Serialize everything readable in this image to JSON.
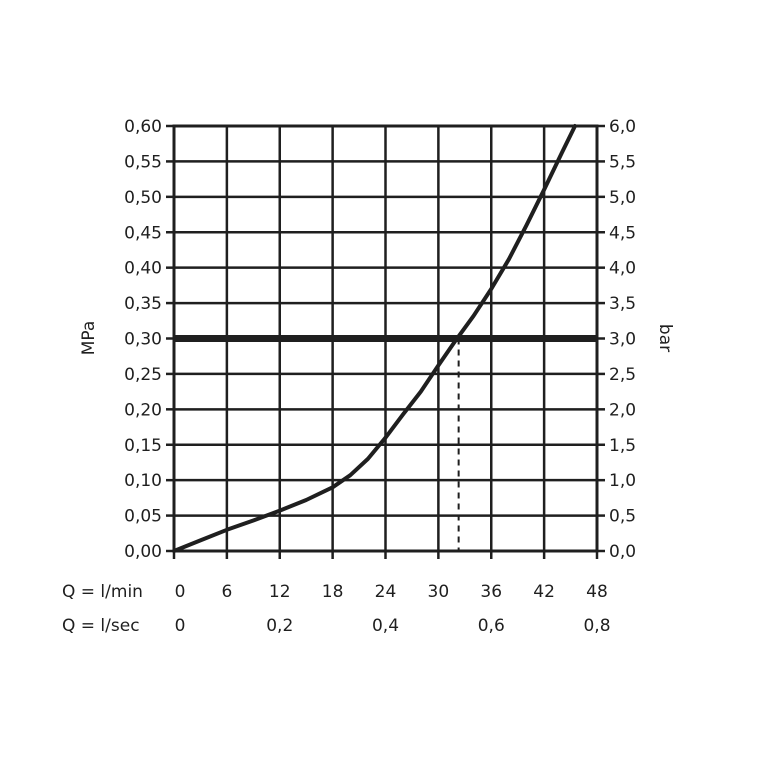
{
  "chart_data": {
    "type": "line",
    "title": "",
    "left_axis": {
      "label": "MPa",
      "ylim": [
        0,
        0.6
      ],
      "ticks": [
        "0,00",
        "0,05",
        "0,10",
        "0,15",
        "0,20",
        "0,25",
        "0,30",
        "0,35",
        "0,40",
        "0,45",
        "0,50",
        "0,55",
        "0,60"
      ]
    },
    "right_axis": {
      "label": "bar",
      "ylim": [
        0,
        6
      ],
      "ticks": [
        "0,0",
        "0,5",
        "1,0",
        "1,5",
        "2,0",
        "2,5",
        "3,0",
        "3,5",
        "4,0",
        "4,5",
        "5,0",
        "5,5",
        "6,0"
      ]
    },
    "x_axis_lmin": {
      "label": "Q = l/min",
      "xlim": [
        0,
        48
      ],
      "ticks": [
        "0",
        "6",
        "12",
        "18",
        "24",
        "30",
        "36",
        "42",
        "48"
      ]
    },
    "x_axis_lsec": {
      "label": "Q = l/sec",
      "xlim": [
        0,
        0.8
      ],
      "ticks": [
        "0",
        "0,2",
        "0,4",
        "0,6",
        "0,8"
      ]
    },
    "grid": true,
    "series": [
      {
        "x": [
          0,
          3,
          6,
          9,
          12,
          15,
          18,
          20,
          22,
          24,
          26,
          28,
          30,
          32,
          34,
          36,
          38,
          40,
          42,
          44,
          45.5
        ],
        "y": [
          0,
          0.015,
          0.03,
          0.043,
          0.057,
          0.072,
          0.09,
          0.107,
          0.13,
          0.16,
          0.193,
          0.225,
          0.262,
          0.298,
          0.332,
          0.37,
          0.412,
          0.46,
          0.51,
          0.562,
          0.6
        ]
      }
    ],
    "reference_line": {
      "y": 0.3
    },
    "intersection": {
      "x": 32.3,
      "y": 0.3
    }
  }
}
